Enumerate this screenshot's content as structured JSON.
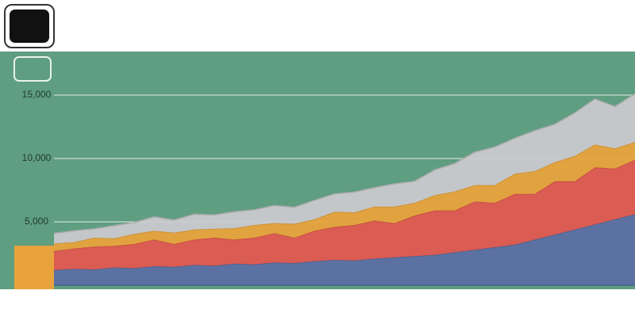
{
  "chart_data": {
    "type": "stacked-area",
    "categories": [
      null,
      null,
      null,
      null,
      null,
      null,
      null,
      null,
      null,
      null,
      null,
      null,
      null,
      null,
      null,
      null,
      null,
      null,
      null,
      null,
      null,
      null,
      null,
      null,
      null,
      null,
      null,
      null,
      null,
      null
    ],
    "series": [
      {
        "color": "#5b6fa3",
        "values": [
          1200,
          1300,
          1250,
          1400,
          1350,
          1500,
          1450,
          1600,
          1550,
          1700,
          1650,
          1800,
          1750,
          1900,
          2000,
          1950,
          2100,
          2200,
          2300,
          2400,
          2600,
          2800,
          3000,
          3200,
          3600,
          4000,
          4400,
          4800,
          5200,
          5600
        ]
      },
      {
        "color": "#e0584f",
        "values": [
          1500,
          1600,
          1800,
          1700,
          1900,
          2100,
          1800,
          2000,
          2200,
          1900,
          2100,
          2300,
          2000,
          2400,
          2600,
          2800,
          3000,
          2700,
          3200,
          3500,
          3300,
          3800,
          3500,
          4000,
          3600,
          4200,
          3800,
          4500,
          4000,
          4300
        ]
      },
      {
        "color": "#e8a33c",
        "values": [
          600,
          500,
          700,
          600,
          800,
          700,
          900,
          800,
          700,
          900,
          1000,
          800,
          1100,
          900,
          1200,
          1000,
          1100,
          1300,
          1000,
          1200,
          1500,
          1300,
          1400,
          1600,
          1800,
          1500,
          2000,
          1800,
          1600,
          1400
        ]
      },
      {
        "color": "#c9c9cc",
        "values": [
          800,
          900,
          700,
          1000,
          900,
          1100,
          1000,
          1200,
          1100,
          1300,
          1200,
          1400,
          1300,
          1500,
          1400,
          1600,
          1500,
          1800,
          1700,
          2000,
          2200,
          2600,
          3000,
          2800,
          3200,
          3000,
          3400,
          3600,
          3300,
          3800
        ]
      }
    ],
    "ylim": [
      0,
      17000
    ],
    "yticks": [
      {
        "value": 5000,
        "label": "5,000"
      },
      {
        "value": 10000,
        "label": "10,000"
      },
      {
        "value": 15000,
        "label": "15,000"
      }
    ],
    "grid": true
  }
}
